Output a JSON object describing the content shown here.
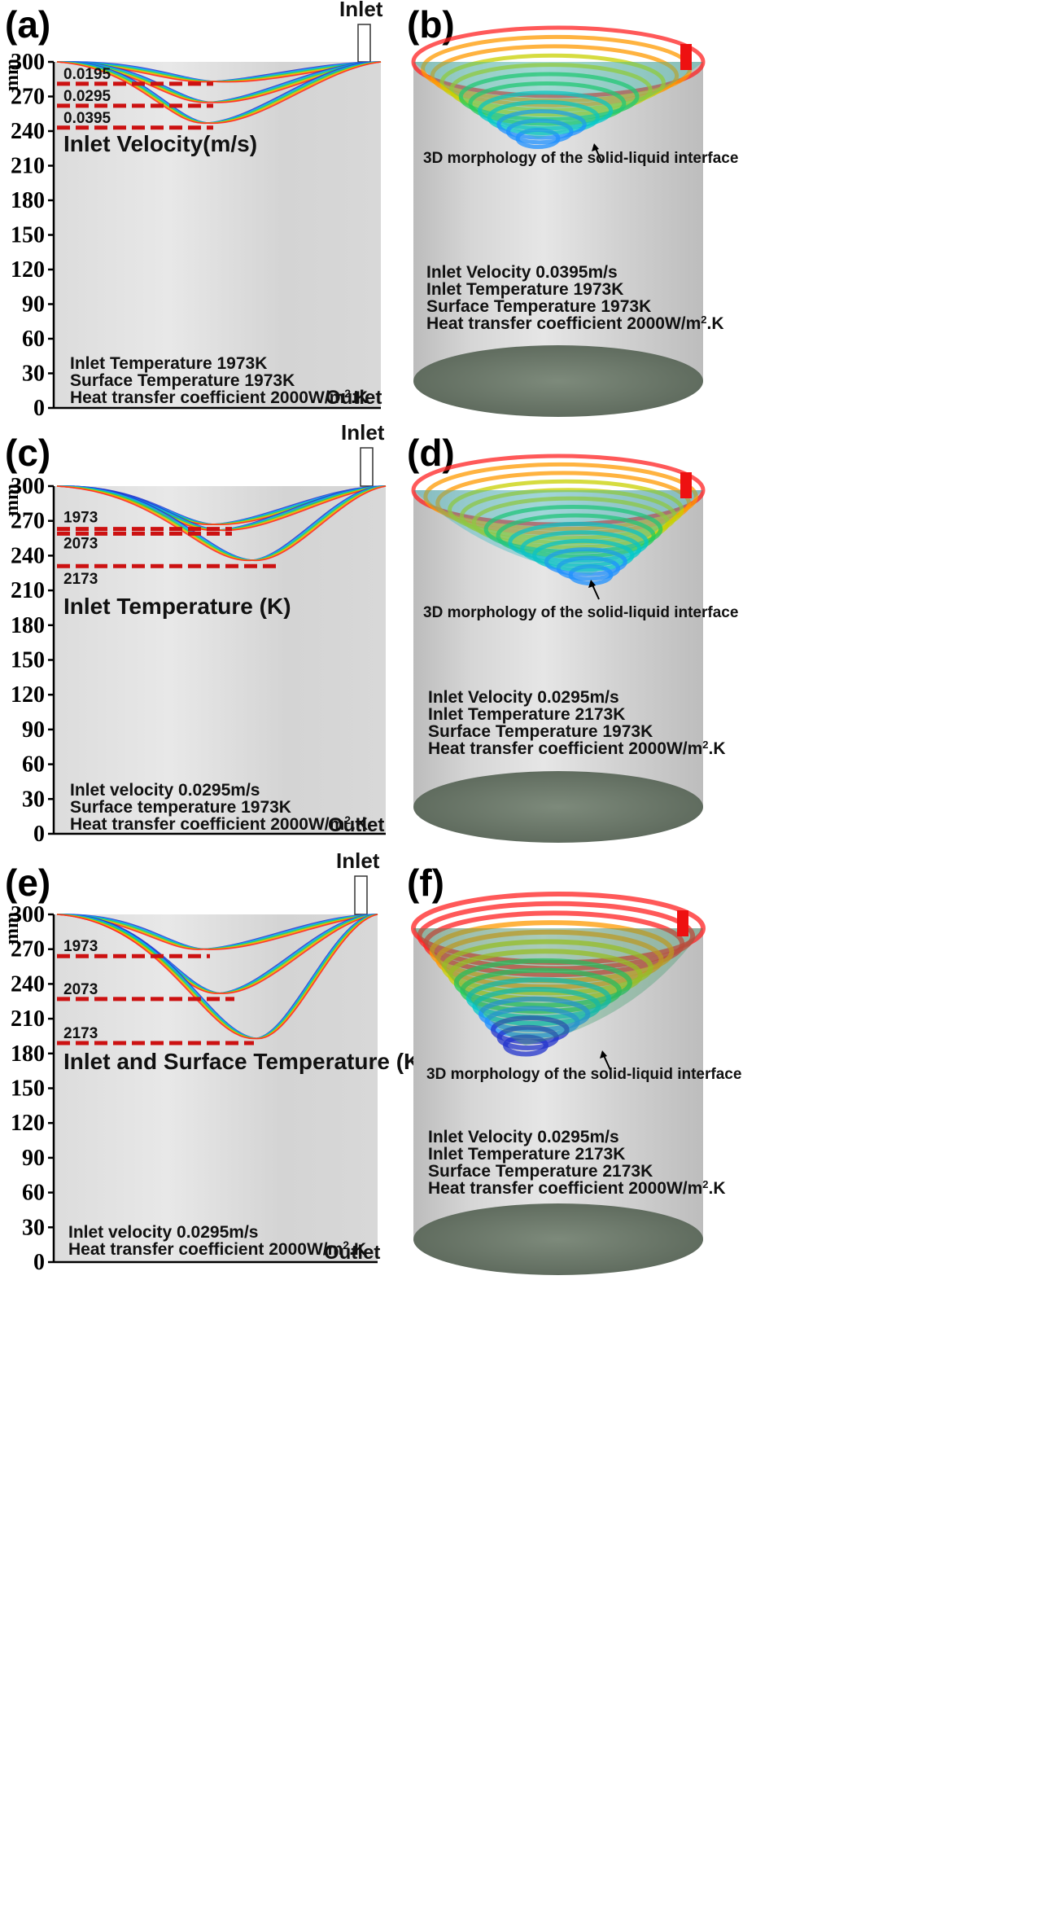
{
  "axis": {
    "unit": "mm",
    "ticks": [
      "0",
      "30",
      "60",
      "90",
      "120",
      "150",
      "180",
      "210",
      "240",
      "270",
      "300"
    ]
  },
  "panels": {
    "a": {
      "label": "(a)",
      "inlet": "Inlet",
      "outlet": "Outlet",
      "title": "Inlet Velocity(m/s)",
      "levels": [
        {
          "label": "0.0195",
          "depth_mm": 281
        },
        {
          "label": "0.0295",
          "depth_mm": 262
        },
        {
          "label": "0.0395",
          "depth_mm": 243
        }
      ],
      "conditions": [
        "Inlet Temperature 1973K",
        "Surface Temperature 1973K"
      ],
      "htc_prefix": "Heat transfer coefficient 2000W/m",
      "htc_sup": "2",
      "htc_suffix": ".K"
    },
    "b": {
      "label": "(b)",
      "caption": "3D morphology of the solid-liquid interface",
      "conditions": [
        "Inlet Velocity 0.0395m/s",
        "Inlet Temperature 1973K",
        "Surface Temperature 1973K"
      ],
      "htc_prefix": "Heat transfer coefficient 2000W/m",
      "htc_sup": "2",
      "htc_suffix": ".K"
    },
    "c": {
      "label": "(c)",
      "inlet": "Inlet",
      "outlet": "Outlet",
      "title": "Inlet Temperature (K)",
      "levels": [
        {
          "label": "1973",
          "depth_mm": 263
        },
        {
          "label": "2073",
          "depth_mm": 259
        },
        {
          "label": "2173",
          "depth_mm": 231
        }
      ],
      "conditions": [
        "Inlet velocity 0.0295m/s",
        "Surface temperature 1973K"
      ],
      "htc_prefix": "Heat transfer coefficient 2000W/m",
      "htc_sup": "2",
      "htc_suffix": ".K"
    },
    "d": {
      "label": "(d)",
      "caption": "3D morphology of the solid-liquid interface",
      "conditions": [
        "Inlet Velocity 0.0295m/s",
        "Inlet Temperature 2173K",
        "Surface Temperature 1973K"
      ],
      "htc_prefix": "Heat transfer coefficient 2000W/m",
      "htc_sup": "2",
      "htc_suffix": ".K"
    },
    "e": {
      "label": "(e)",
      "inlet": "Inlet",
      "outlet": "Outlet",
      "title": "Inlet and Surface Temperature (K)",
      "levels": [
        {
          "label": "1973",
          "depth_mm": 264
        },
        {
          "label": "2073",
          "depth_mm": 227
        },
        {
          "label": "2173",
          "depth_mm": 189
        }
      ],
      "conditions": [
        "Inlet velocity 0.0295m/s"
      ],
      "htc_prefix": "Heat transfer coefficient 2000W/m",
      "htc_sup": "2",
      "htc_suffix": ".K"
    },
    "f": {
      "label": "(f)",
      "caption": "3D morphology of the solid-liquid interface",
      "conditions": [
        "Inlet Velocity 0.0295m/s",
        "Inlet Temperature 2173K",
        "Surface Temperature 2173K"
      ],
      "htc_prefix": "Heat transfer coefficient 2000W/m",
      "htc_sup": "2",
      "htc_suffix": ".K"
    }
  },
  "colors": {
    "dash": "#cc1111",
    "rainbow": [
      "#2233cc",
      "#1e90ff",
      "#00c8c8",
      "#22cc55",
      "#c8d000",
      "#ff9900",
      "#ff2222"
    ],
    "inlet_block": "#ee1111",
    "cylinder_base": "#6d7b6d"
  }
}
